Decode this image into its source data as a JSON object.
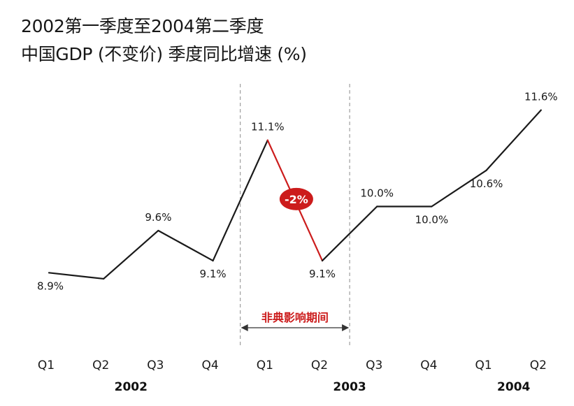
{
  "title": {
    "line1": "2002第一季度至2004第二季度",
    "line2": "中国GDP (不变价) 季度同比增速 (%)"
  },
  "colors": {
    "line": "#1a1a1a",
    "highlight": "#cc1c1c",
    "divider": "#8a8a8a",
    "text": "#1a1a1a"
  },
  "chart_data": {
    "type": "line",
    "title": "2002第一季度至2004第二季度 中国GDP (不变价) 季度同比增速 (%)",
    "categories": [
      "Q1",
      "Q2",
      "Q3",
      "Q4",
      "Q1",
      "Q2",
      "Q3",
      "Q4",
      "Q1",
      "Q2"
    ],
    "years": [
      {
        "label": "2002",
        "start": 0,
        "end": 3
      },
      {
        "label": "2003",
        "start": 4,
        "end": 7
      },
      {
        "label": "2004",
        "start": 8,
        "end": 9
      }
    ],
    "series": [
      {
        "values": [
          8.9,
          8.8,
          9.6,
          9.1,
          11.1,
          9.1,
          10.0,
          10.0,
          10.6,
          11.6
        ],
        "labels": [
          "8.9%",
          null,
          "9.6%",
          "9.1%",
          "11.1%",
          "9.1%",
          "10.0%",
          "10.0%",
          "10.6%",
          "11.6%"
        ]
      }
    ],
    "highlight": {
      "from_index": 4,
      "to_index": 5,
      "label": "-2%"
    },
    "span_annotation": {
      "from_index": 3.5,
      "to_index": 5.5,
      "label": "非典影响期间"
    },
    "ylim": [
      7.5,
      12.5
    ],
    "grid": false,
    "legend": "none"
  }
}
